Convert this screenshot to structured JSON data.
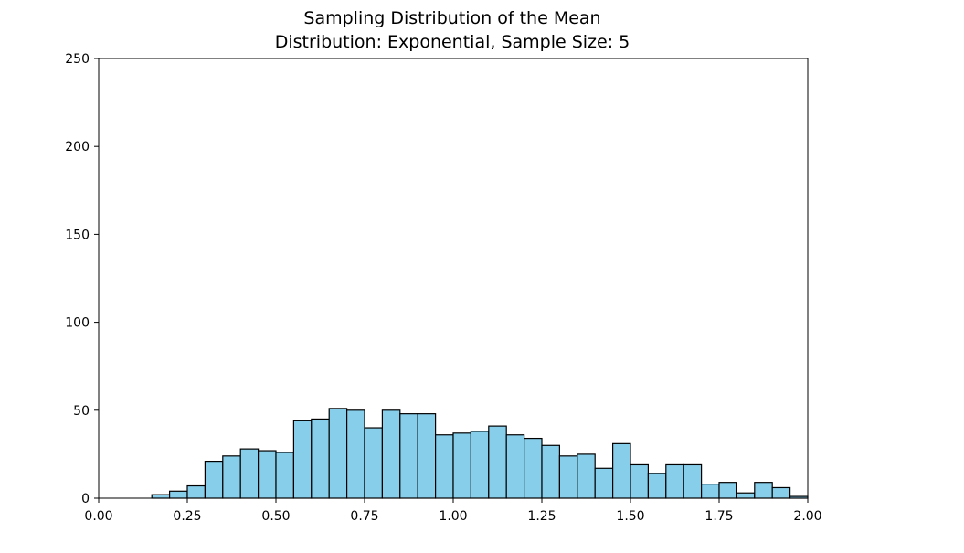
{
  "chart_data": {
    "type": "bar",
    "title": "Sampling Distribution of the Mean",
    "subtitle": "Distribution: Exponential, Sample Size: 5",
    "xlabel": "",
    "ylabel": "",
    "xlim": [
      0,
      2
    ],
    "ylim": [
      0,
      250
    ],
    "x_ticks": [
      "0.00",
      "0.25",
      "0.50",
      "0.75",
      "1.00",
      "1.25",
      "1.50",
      "1.75",
      "2.00"
    ],
    "y_ticks": [
      "0",
      "50",
      "100",
      "150",
      "200",
      "250"
    ],
    "grid": false,
    "bar_color": "#87CEEB",
    "edge_color": "#000000",
    "bin_width": 0.05,
    "bin_starts": [
      0.15,
      0.2,
      0.25,
      0.3,
      0.35,
      0.4,
      0.45,
      0.5,
      0.55,
      0.6,
      0.65,
      0.7,
      0.75,
      0.8,
      0.85,
      0.9,
      0.95,
      1.0,
      1.05,
      1.1,
      1.15,
      1.2,
      1.25,
      1.3,
      1.35,
      1.4,
      1.45,
      1.5,
      1.55,
      1.6,
      1.65,
      1.7,
      1.75,
      1.8,
      1.85,
      1.9,
      1.95
    ],
    "values": [
      2,
      4,
      7,
      21,
      24,
      28,
      27,
      26,
      44,
      45,
      51,
      50,
      40,
      50,
      48,
      48,
      36,
      37,
      38,
      41,
      36,
      34,
      30,
      24,
      25,
      17,
      31,
      19,
      14,
      19,
      19,
      8,
      9,
      3,
      9,
      6,
      1
    ]
  }
}
